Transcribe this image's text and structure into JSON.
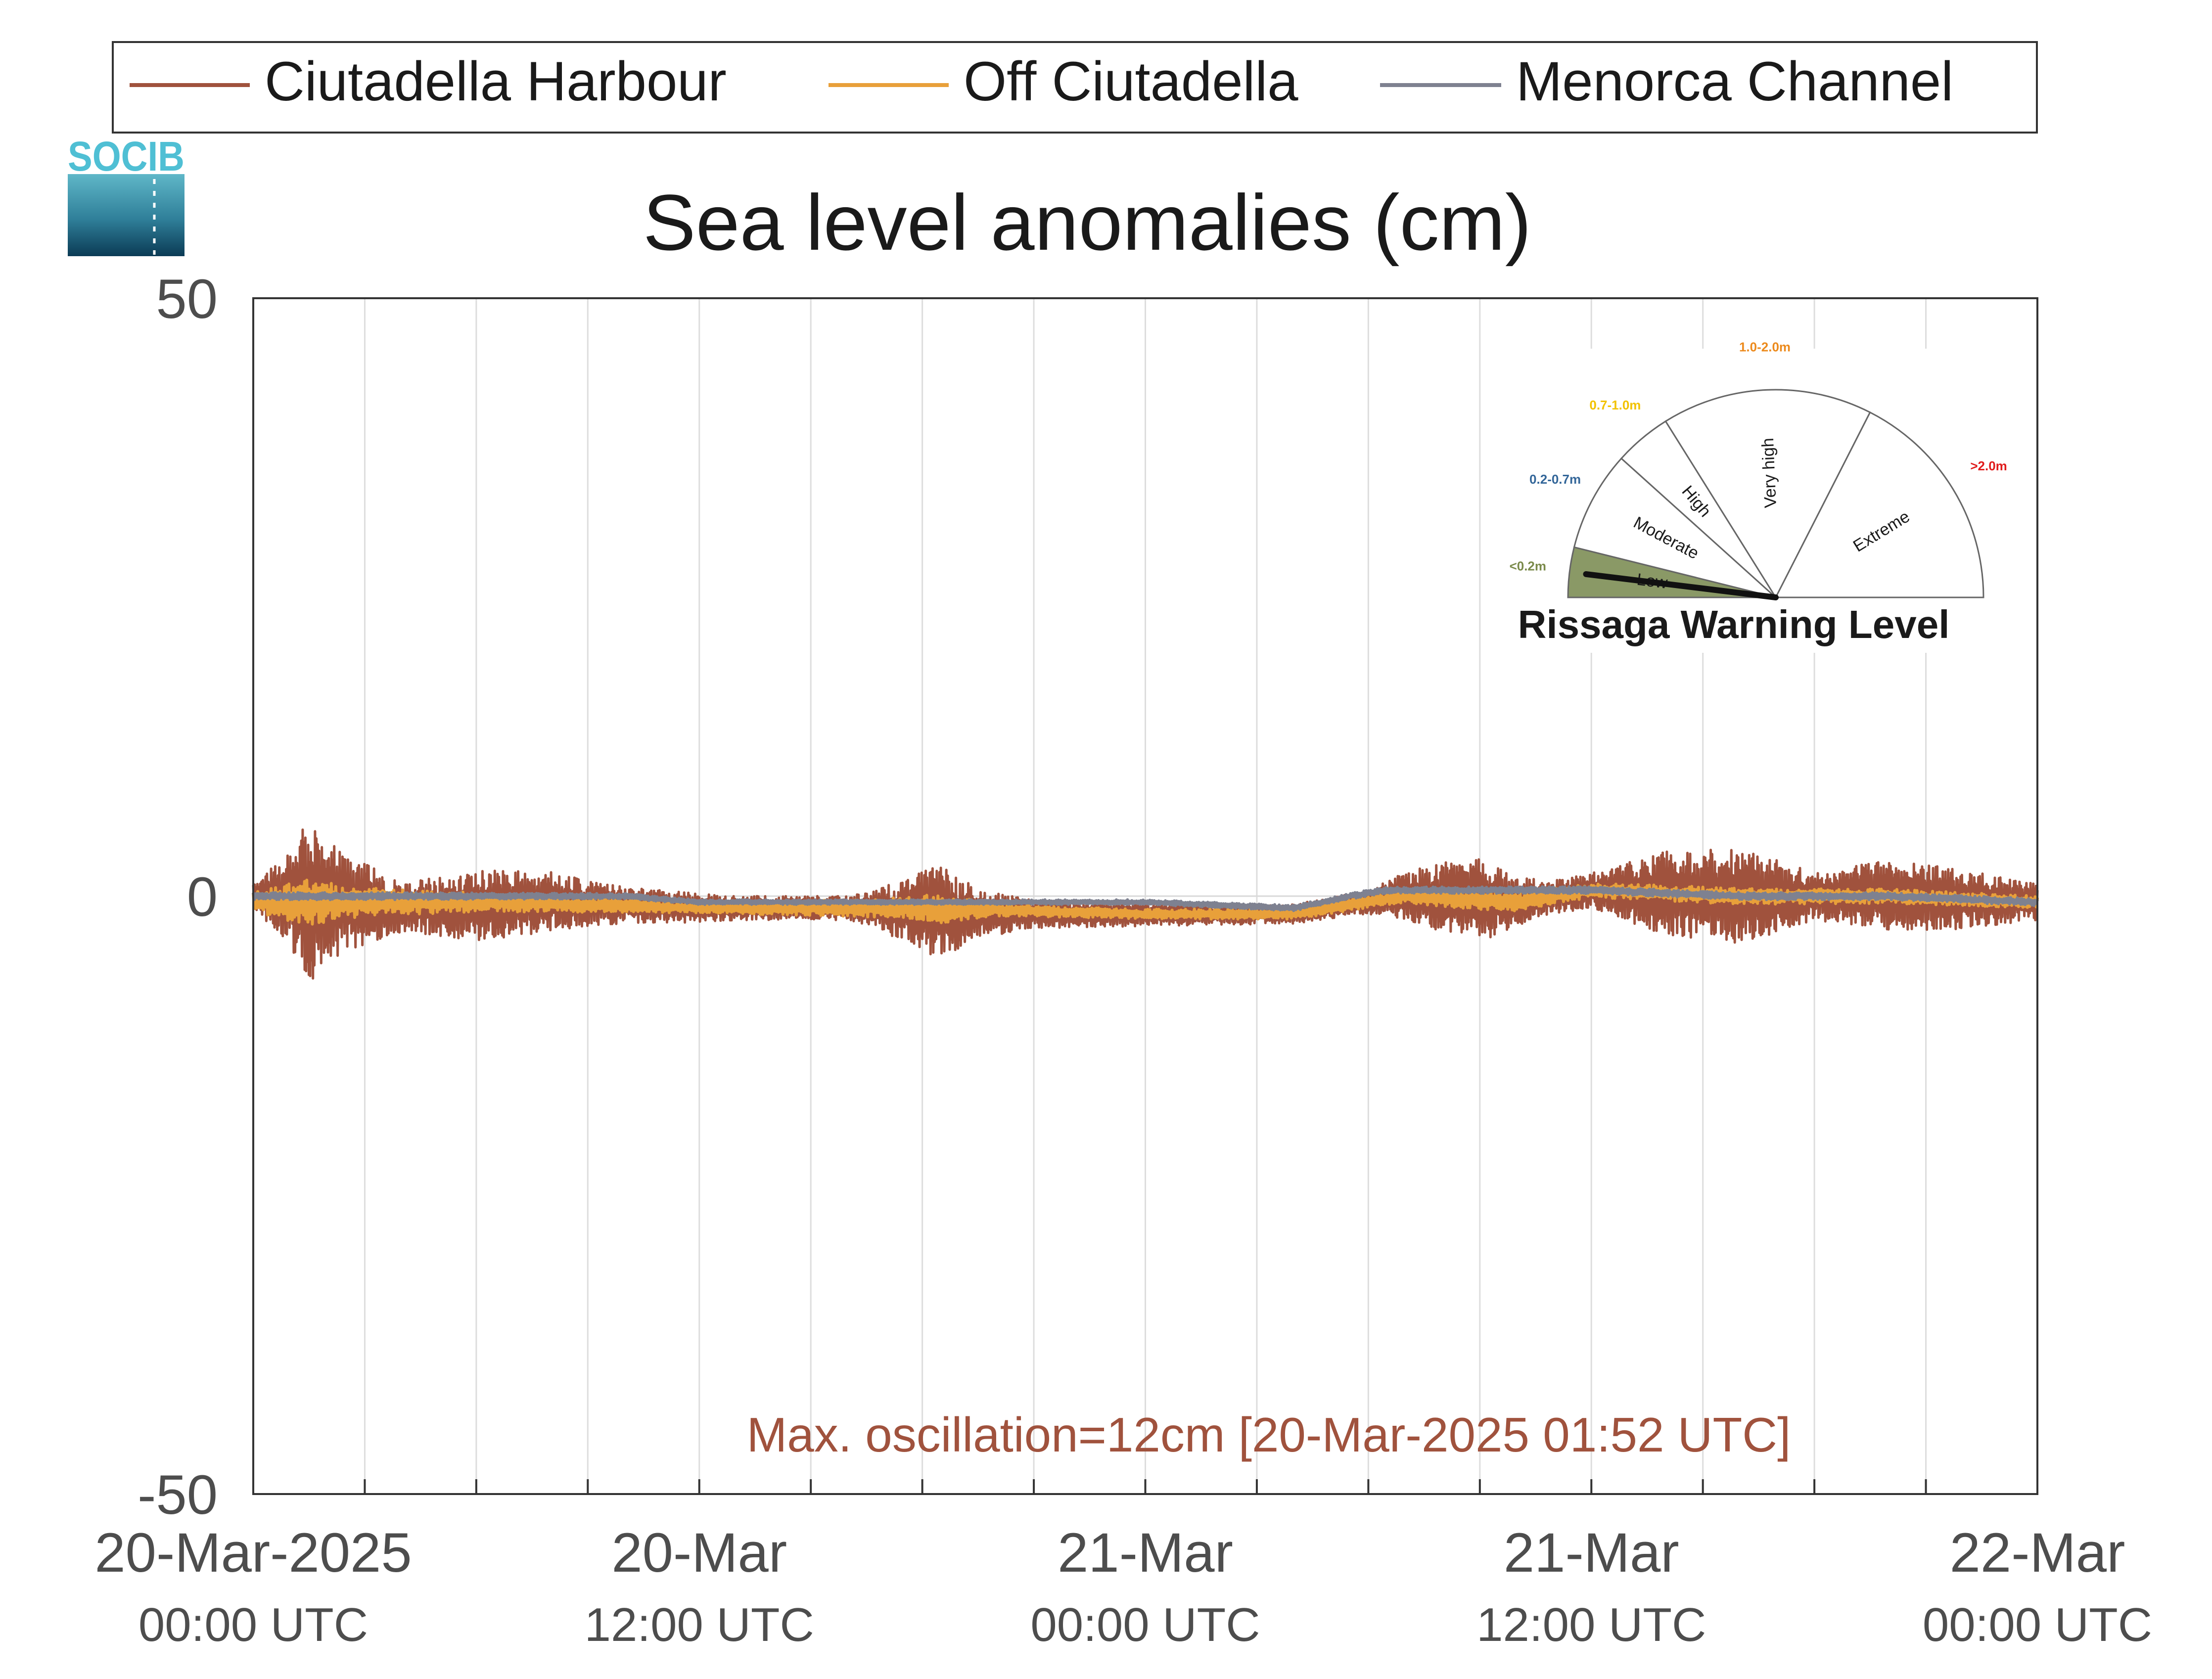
{
  "chart_data": {
    "type": "line",
    "title": "Sea level anomalies (cm)",
    "ylim": [
      -50,
      50
    ],
    "y_ticks": [
      50,
      0,
      -50
    ],
    "y_tick_labels": [
      "50",
      "0",
      "-50"
    ],
    "x_range_hours": [
      0,
      48
    ],
    "x_axis_start": "20-Mar-2025 00:00 UTC",
    "x_axis_end": "22-Mar-2025 00:00 UTC",
    "x_tick_labels": [
      {
        "hour": 0,
        "date": "20-Mar-2025",
        "time": "00:00 UTC"
      },
      {
        "hour": 12,
        "date": "20-Mar",
        "time": "12:00 UTC"
      },
      {
        "hour": 24,
        "date": "21-Mar",
        "time": "00:00 UTC"
      },
      {
        "hour": 36,
        "date": "21-Mar",
        "time": "12:00 UTC"
      },
      {
        "hour": 48,
        "date": "22-Mar",
        "time": "00:00 UTC"
      }
    ],
    "grid_hours": [
      3,
      6,
      9,
      12,
      15,
      18,
      21,
      24,
      27,
      30,
      33,
      36,
      39,
      42,
      45
    ],
    "grid": true,
    "legend_position": "top",
    "series": [
      {
        "name": "Ciutadella Harbour",
        "color": "#a0523d",
        "oscillating": true,
        "mean_hours": [
          0,
          4,
          8,
          12,
          16,
          20,
          24,
          28,
          30,
          31,
          34,
          36,
          40,
          44,
          48
        ],
        "mean_values": [
          0,
          -1,
          -0.5,
          -1,
          -1,
          -1.5,
          -1.5,
          -1.5,
          -0.5,
          0,
          -0.5,
          0.5,
          0,
          0,
          -0.5
        ],
        "amp_hours": [
          0,
          1.0,
          1.5,
          2,
          3,
          4,
          6,
          8,
          10,
          12,
          13,
          16,
          17.5,
          18.5,
          19.5,
          21,
          24,
          28,
          30,
          32,
          33,
          34,
          35,
          36,
          38,
          40,
          42,
          44,
          46,
          48
        ],
        "amp_values": [
          1,
          4,
          7,
          5,
          3.5,
          2,
          3,
          2.5,
          1.5,
          1.2,
          1,
          1,
          2.5,
          4,
          2,
          1.2,
          1,
          0.8,
          1,
          3,
          3.5,
          2,
          1.5,
          1.5,
          3.5,
          4,
          2,
          3,
          2.5,
          1.5
        ]
      },
      {
        "name": "Off Ciutadella",
        "color": "#e8a03a",
        "oscillating": true,
        "mean_hours": [
          0,
          6,
          12,
          18,
          24,
          28,
          30,
          31,
          34,
          36,
          40,
          44,
          48
        ],
        "mean_values": [
          -0.5,
          -0.5,
          -1,
          -1,
          -1.5,
          -1.5,
          -0.5,
          0,
          -0.5,
          0.5,
          0,
          0,
          -0.5
        ],
        "amp_hours": [
          0,
          1.5,
          3,
          6,
          12,
          17,
          18.5,
          20,
          24,
          30,
          33,
          36,
          40,
          44,
          48
        ],
        "amp_values": [
          0.8,
          2,
          1.2,
          0.8,
          0.4,
          0.8,
          1.2,
          0.5,
          0.4,
          0.5,
          0.8,
          0.6,
          0.7,
          0.6,
          0.5
        ]
      },
      {
        "name": "Menorca Channel",
        "color": "#7e8190",
        "oscillating": true,
        "mean_hours": [
          0,
          6,
          10,
          12,
          18,
          24,
          28,
          29.5,
          30.5,
          36,
          40,
          44,
          48
        ],
        "mean_values": [
          0,
          0,
          0,
          -0.5,
          -0.5,
          -0.5,
          -1,
          0,
          0.5,
          0.5,
          0,
          0,
          -0.5
        ],
        "amp_hours": [
          0,
          4,
          12,
          24,
          36,
          48
        ],
        "amp_values": [
          0.3,
          0.3,
          0.2,
          0.2,
          0.3,
          0.3
        ]
      }
    ],
    "annotation": {
      "text": "Max. oscillation=12cm [20-Mar-2025 01:52 UTC]",
      "color": "#a0523d"
    }
  },
  "logo": {
    "text": "SOCIB",
    "color": "#4fbfd4"
  },
  "gauge": {
    "title": "Rissaga Warning Level",
    "needle_level": "Low",
    "levels": [
      {
        "name": "Low",
        "range": "<0.2m",
        "range_color": "#7a8a4a",
        "fill": "#8a9966"
      },
      {
        "name": "Moderate",
        "range": "0.2-0.7m",
        "range_color": "#336699",
        "fill": "#ffffff"
      },
      {
        "name": "High",
        "range": "0.7-1.0m",
        "range_color": "#f2c200",
        "fill": "#ffffff"
      },
      {
        "name": "Very high",
        "range": "1.0-2.0m",
        "range_color": "#ec8a1c",
        "fill": "#ffffff"
      },
      {
        "name": "Extreme",
        "range": ">2.0m",
        "range_color": "#e01b1b",
        "fill": "#ffffff"
      }
    ]
  }
}
